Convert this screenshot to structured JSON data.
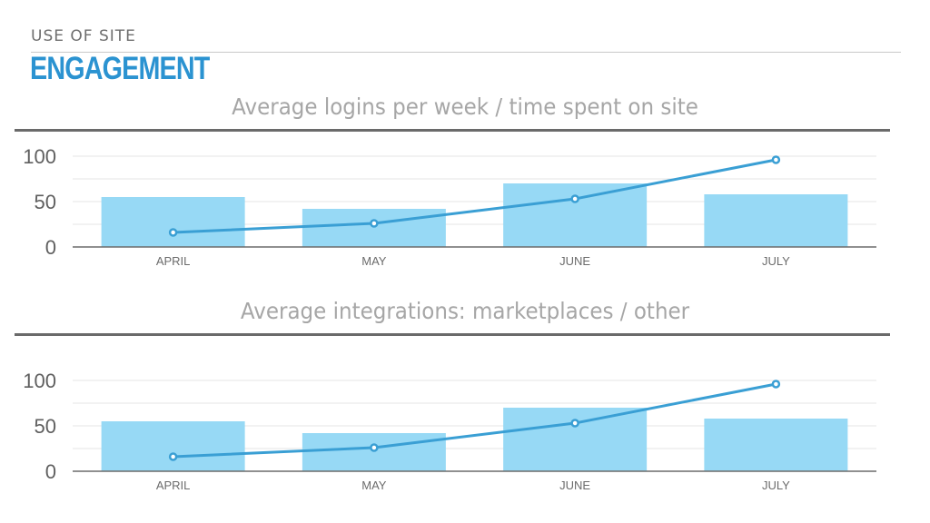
{
  "header": {
    "section_label": "USE OF SITE",
    "title": "ENGAGEMENT"
  },
  "colors": {
    "title": "#2b93d1",
    "bar": "#97d9f5",
    "line": "#3a9fd4",
    "axis": "#6b6b6b",
    "grid": "#e4e4e4"
  },
  "chart_data": [
    {
      "type": "bar+line",
      "title": "Average logins per week / time spent on site",
      "categories": [
        "APRIL",
        "MAY",
        "JUNE",
        "JULY"
      ],
      "y_ticks": [
        "100",
        "50",
        "0"
      ],
      "ylim": [
        0,
        100
      ],
      "grid": true,
      "series": [
        {
          "kind": "bar",
          "values": [
            55,
            42,
            70,
            58
          ]
        },
        {
          "kind": "line",
          "values": [
            16,
            26,
            53,
            96
          ]
        }
      ]
    },
    {
      "type": "bar+line",
      "title": "Average integrations: marketplaces / other",
      "categories": [
        "APRIL",
        "MAY",
        "JUNE",
        "JULY"
      ],
      "y_ticks": [
        "100",
        "50",
        "0"
      ],
      "ylim": [
        0,
        100
      ],
      "grid": true,
      "series": [
        {
          "kind": "bar",
          "values": [
            55,
            42,
            70,
            58
          ]
        },
        {
          "kind": "line",
          "values": [
            16,
            26,
            53,
            96
          ]
        }
      ]
    }
  ]
}
